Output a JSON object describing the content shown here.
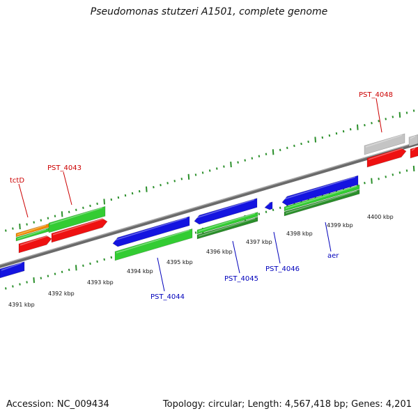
{
  "title": "Pseudomonas stutzeri A1501, complete genome",
  "footer": {
    "accession": "Accession: NC_009434",
    "stats": "Topology: circular; Length: 4,567,418 bp; Genes: 4,201"
  },
  "kbp_labels": [
    "4391 kbp",
    "4392 kbp",
    "4393 kbp",
    "4394 kbp",
    "4395 kbp",
    "4396 kbp",
    "4397 kbp",
    "4398 kbp",
    "4399 kbp",
    "4400 kbp"
  ],
  "gene_labels": {
    "tctD": "tctD",
    "pst4043": "PST_4043",
    "pst4048": "PST_4048",
    "pst4044": "PST_4044",
    "pst4045": "PST_4045",
    "pst4046": "PST_4046",
    "aer": "aer"
  },
  "colors": {
    "blue": "#1414e0",
    "green": "#33cc33",
    "dark_green": "#2a8f2a",
    "red": "#ee1111",
    "orange": "#f08a00",
    "gray": "#c4c4c4",
    "label_red": "#cc0000",
    "label_blue": "#0000bb"
  }
}
